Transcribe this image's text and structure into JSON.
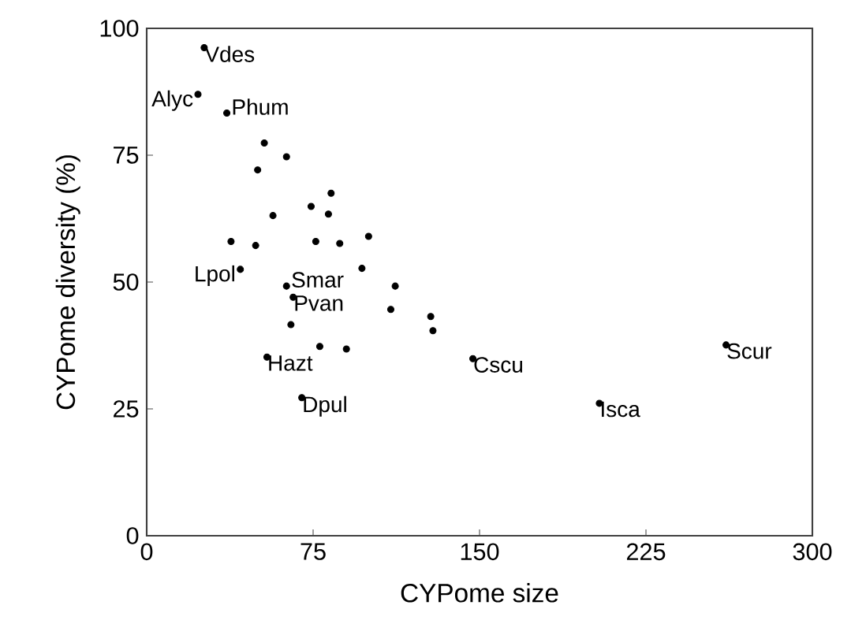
{
  "chart_data": {
    "type": "scatter",
    "xlabel": "CYPome size",
    "ylabel": "CYPome diversity (%)",
    "x": [
      25.9,
      23.1,
      36.1,
      53.0,
      63.0,
      50.0,
      83.1,
      74.1,
      81.9,
      56.9,
      100.0,
      38.0,
      76.2,
      87.0,
      49.1,
      42.2,
      97.0,
      63.0,
      112.0,
      66.0,
      110.0,
      128.0,
      129.0,
      65.0,
      78.0,
      90.0,
      54.2,
      69.9,
      147.0,
      204.0,
      261.1
    ],
    "values": [
      96.2,
      87.0,
      83.3,
      77.4,
      74.7,
      72.1,
      67.5,
      64.9,
      63.4,
      63.1,
      59.0,
      58.0,
      58.0,
      57.6,
      57.2,
      52.5,
      52.7,
      49.2,
      49.2,
      47.0,
      44.6,
      43.2,
      40.4,
      41.6,
      37.3,
      36.8,
      35.2,
      27.2,
      34.9,
      26.1,
      37.6
    ],
    "color": "#000000",
    "marker": "circle",
    "grid": false,
    "xlim": [
      0,
      300
    ],
    "xticks": [
      0,
      75,
      150,
      225,
      300
    ],
    "ylim": [
      0,
      100
    ],
    "yticks": [
      0,
      25,
      50,
      75,
      100
    ],
    "annotations": [
      {
        "text": "Vdes",
        "x": 25.9,
        "y": 96.2
      },
      {
        "text": "Alyc",
        "x": 23.1,
        "y": 87.0
      },
      {
        "text": "Phum",
        "x": 36.1,
        "y": 83.3
      },
      {
        "text": "Lpol",
        "x": 42.2,
        "y": 52.5
      },
      {
        "text": "Smar",
        "x": 63.0,
        "y": 49.2
      },
      {
        "text": "Pvan",
        "x": 66.0,
        "y": 47.0
      },
      {
        "text": "Hazt",
        "x": 54.2,
        "y": 35.2
      },
      {
        "text": "Dpul",
        "x": 69.9,
        "y": 27.2
      },
      {
        "text": "Cscu",
        "x": 147.0,
        "y": 34.9
      },
      {
        "text": "Isca",
        "x": 204.0,
        "y": 26.1
      },
      {
        "text": "Scur",
        "x": 261.1,
        "y": 37.6
      }
    ]
  }
}
